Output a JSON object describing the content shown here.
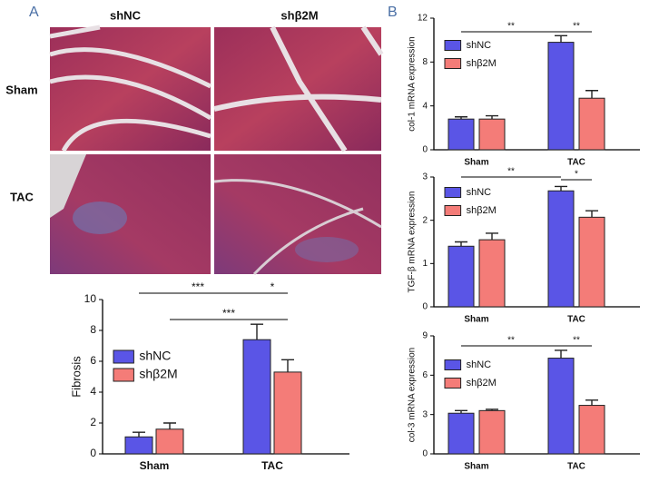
{
  "panel_a": {
    "label": "A",
    "columns": [
      "shNC",
      "shβ2M"
    ],
    "rows": [
      "Sham",
      "TAC"
    ]
  },
  "panel_b": {
    "label": "B"
  },
  "chart_data": [
    {
      "type": "bar",
      "y_label": "Fibrosis",
      "categories": [
        "Sham",
        "TAC"
      ],
      "series": [
        {
          "name": "shNC",
          "color": "#5a55e6",
          "values": [
            1.1,
            7.4
          ],
          "errors": [
            0.3,
            1.0
          ]
        },
        {
          "name": "shβ2M",
          "color": "#f47c78",
          "values": [
            1.6,
            5.3
          ],
          "errors": [
            0.4,
            0.8
          ]
        }
      ],
      "ylim": [
        0,
        10
      ],
      "yticks": [
        0,
        2,
        4,
        6,
        8,
        10
      ],
      "annotations": [
        "***",
        "*",
        "***"
      ]
    },
    {
      "type": "bar",
      "y_label": "col-1 mRNA expression",
      "categories": [
        "Sham",
        "TAC"
      ],
      "series": [
        {
          "name": "shNC",
          "color": "#5a55e6",
          "values": [
            2.8,
            9.8
          ],
          "errors": [
            0.2,
            0.6
          ]
        },
        {
          "name": "shβ2M",
          "color": "#f47c78",
          "values": [
            2.8,
            4.7
          ],
          "errors": [
            0.3,
            0.7
          ]
        }
      ],
      "ylim": [
        0,
        12
      ],
      "yticks": [
        0,
        4,
        8,
        12
      ],
      "annotations": [
        "**",
        "**"
      ]
    },
    {
      "type": "bar",
      "y_label": "TGF-β mRNA expression",
      "categories": [
        "Sham",
        "TAC"
      ],
      "series": [
        {
          "name": "shNC",
          "color": "#5a55e6",
          "values": [
            1.4,
            2.68
          ],
          "errors": [
            0.1,
            0.1
          ]
        },
        {
          "name": "shβ2M",
          "color": "#f47c78",
          "values": [
            1.55,
            2.07
          ],
          "errors": [
            0.15,
            0.15
          ]
        }
      ],
      "ylim": [
        0,
        3
      ],
      "yticks": [
        0,
        1,
        2,
        3
      ],
      "annotations": [
        "**",
        "*"
      ]
    },
    {
      "type": "bar",
      "y_label": "col-3 mRNA expression",
      "categories": [
        "Sham",
        "TAC"
      ],
      "series": [
        {
          "name": "shNC",
          "color": "#5a55e6",
          "values": [
            3.1,
            7.3
          ],
          "errors": [
            0.2,
            0.6
          ]
        },
        {
          "name": "shβ2M",
          "color": "#f47c78",
          "values": [
            3.3,
            3.7
          ],
          "errors": [
            0.1,
            0.4
          ]
        }
      ],
      "ylim": [
        0,
        9
      ],
      "yticks": [
        0,
        3,
        6,
        9
      ],
      "annotations": [
        "**",
        "**"
      ]
    }
  ]
}
